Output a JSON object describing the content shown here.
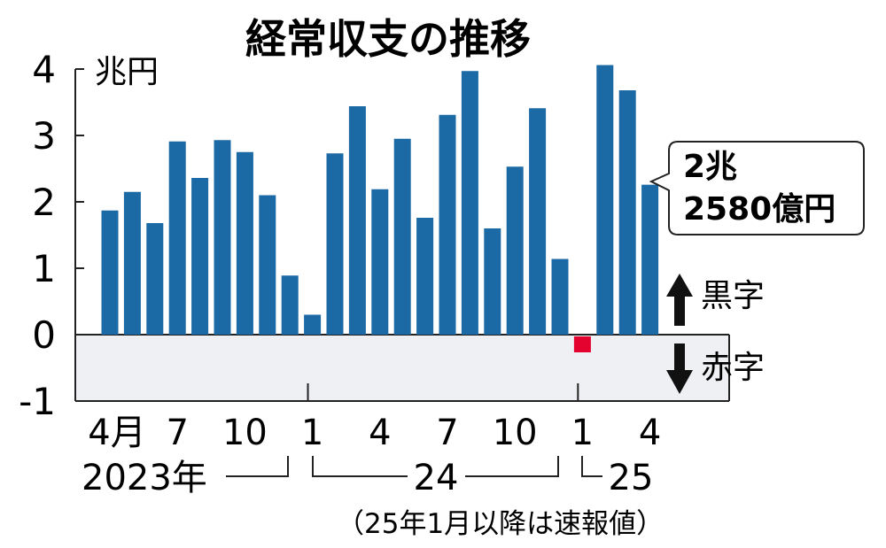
{
  "chart_data": {
    "type": "bar",
    "title": "経常収支の推移",
    "unit_label": "兆円",
    "ylim": [
      -1,
      4
    ],
    "y_ticks": [
      "4",
      "3",
      "2",
      "1",
      "0",
      "-1"
    ],
    "y_tick_values": [
      4,
      3,
      2,
      1,
      0,
      -1
    ],
    "months": [
      4,
      5,
      6,
      7,
      8,
      9,
      10,
      11,
      12,
      1,
      2,
      3,
      4,
      5,
      6,
      7,
      8,
      9,
      10,
      11,
      12,
      1,
      2,
      3,
      4
    ],
    "values": [
      1.87,
      2.15,
      1.68,
      2.91,
      2.36,
      2.93,
      2.75,
      2.1,
      0.89,
      0.3,
      2.73,
      3.44,
      2.19,
      2.95,
      1.76,
      3.31,
      3.97,
      1.6,
      2.53,
      3.41,
      1.14,
      -0.24,
      4.06,
      3.68,
      2.258
    ],
    "x_tick_labels": [
      {
        "index": 0,
        "text": "4月"
      },
      {
        "index": 3,
        "text": "7"
      },
      {
        "index": 6,
        "text": "10"
      },
      {
        "index": 9,
        "text": "1"
      },
      {
        "index": 12,
        "text": "4"
      },
      {
        "index": 15,
        "text": "7"
      },
      {
        "index": 18,
        "text": "10"
      },
      {
        "index": 21,
        "text": "1"
      },
      {
        "index": 24,
        "text": "4"
      }
    ],
    "year_labels": [
      "2023年",
      "24",
      "25"
    ],
    "callout": [
      "2兆",
      "2580億円"
    ],
    "surplus_label": "黒字",
    "deficit_label": "赤字",
    "footnote": "（25年1月以降は速報値）",
    "colors": {
      "positive": "#1b6aa5",
      "negative": "#e4032e",
      "deficit_band": "#eef0f3"
    }
  }
}
